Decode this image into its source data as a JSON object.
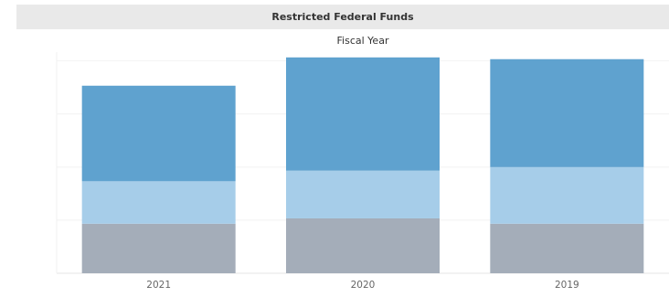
{
  "chart_data": {
    "type": "bar",
    "stacked": true,
    "title": "Restricted Federal Funds",
    "column_header": "Fiscal Year",
    "categories": [
      "2021",
      "2020",
      "2019"
    ],
    "series": [
      {
        "values": [
          28,
          31,
          28
        ]
      },
      {
        "values": [
          24,
          27,
          32
        ]
      },
      {
        "values": [
          54,
          64,
          61
        ]
      }
    ],
    "ylim": [
      0,
      125
    ],
    "grid": true,
    "legend": "none",
    "colors": [
      "#a4adb9",
      "#a6cde9",
      "#5fa2cf"
    ]
  }
}
